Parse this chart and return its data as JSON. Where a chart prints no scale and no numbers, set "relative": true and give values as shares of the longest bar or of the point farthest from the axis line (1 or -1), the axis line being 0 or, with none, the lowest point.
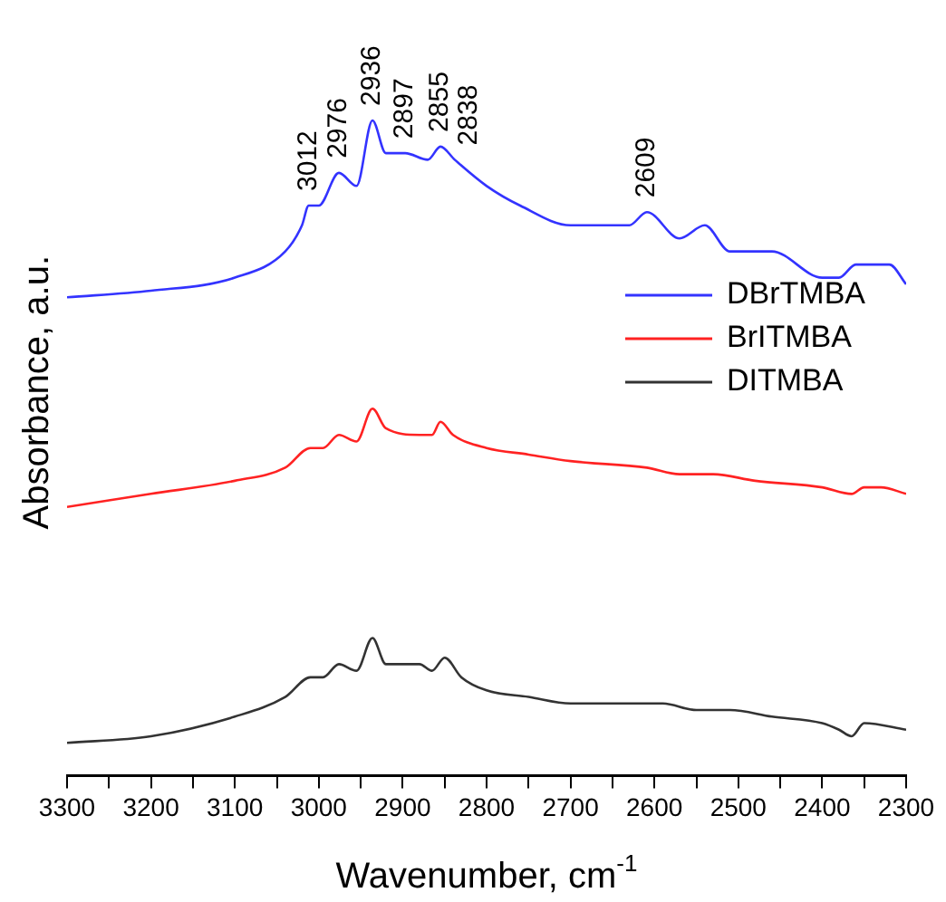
{
  "chart_data": {
    "type": "line",
    "relative": true,
    "xlabel": "Wavenumber, cm$^{-1}$",
    "ylabel": "Absorbance, a.u.",
    "xlim": [
      3300,
      2300
    ],
    "xticks": [
      3300,
      {
        "value": 3250,
        "label": null
      },
      3200,
      {
        "value": 3150,
        "label": null
      },
      3100,
      {
        "value": 3050,
        "label": null
      },
      3000,
      {
        "value": 2950,
        "label": null
      },
      2900,
      {
        "value": 2850,
        "label": null
      },
      2800,
      {
        "value": 2750,
        "label": null
      },
      2700,
      {
        "value": 2650,
        "label": null
      },
      2600,
      {
        "value": 2550,
        "label": null
      },
      2500,
      {
        "value": 2450,
        "label": null
      },
      2400,
      {
        "value": 2350,
        "label": null
      },
      2300
    ],
    "tick_labels": "x",
    "grid": false,
    "legend": "right",
    "marker": "none",
    "line_style": "solid",
    "series": [
      {
        "name": "DBrTMBA",
        "color": "#3333ff",
        "x": [
          3300,
          3200,
          3100,
          3040,
          3020,
          3012,
          3000,
          2976,
          2955,
          2936,
          2920,
          2897,
          2870,
          2855,
          2838,
          2800,
          2760,
          2700,
          2650,
          2630,
          2609,
          2570,
          2540,
          2510,
          2460,
          2400,
          2380,
          2360,
          2340,
          2320,
          2300
        ],
        "values": [
          0.73,
          0.74,
          0.76,
          0.8,
          0.84,
          0.87,
          0.87,
          0.92,
          0.9,
          1.0,
          0.95,
          0.95,
          0.94,
          0.96,
          0.94,
          0.9,
          0.87,
          0.84,
          0.84,
          0.84,
          0.86,
          0.82,
          0.84,
          0.8,
          0.8,
          0.76,
          0.76,
          0.78,
          0.78,
          0.78,
          0.75
        ]
      },
      {
        "name": "BrITMBA",
        "color": "#ff2222",
        "x": [
          3300,
          3200,
          3100,
          3040,
          3010,
          2995,
          2976,
          2955,
          2936,
          2920,
          2880,
          2865,
          2855,
          2840,
          2800,
          2750,
          2700,
          2609,
          2570,
          2530,
          2480,
          2400,
          2365,
          2350,
          2330,
          2300
        ],
        "values": [
          0.41,
          0.43,
          0.45,
          0.47,
          0.5,
          0.5,
          0.52,
          0.51,
          0.56,
          0.53,
          0.52,
          0.52,
          0.54,
          0.52,
          0.5,
          0.49,
          0.48,
          0.47,
          0.46,
          0.46,
          0.45,
          0.44,
          0.43,
          0.44,
          0.44,
          0.43
        ]
      },
      {
        "name": "DITMBA",
        "color": "#333333",
        "x": [
          3300,
          3200,
          3100,
          3040,
          3010,
          2995,
          2976,
          2955,
          2936,
          2920,
          2880,
          2865,
          2850,
          2830,
          2800,
          2750,
          2700,
          2620,
          2590,
          2550,
          2510,
          2460,
          2400,
          2380,
          2365,
          2350,
          2300
        ],
        "values": [
          0.05,
          0.06,
          0.09,
          0.12,
          0.15,
          0.15,
          0.17,
          0.16,
          0.21,
          0.17,
          0.17,
          0.16,
          0.18,
          0.15,
          0.13,
          0.12,
          0.11,
          0.11,
          0.11,
          0.1,
          0.1,
          0.09,
          0.08,
          0.07,
          0.06,
          0.08,
          0.07
        ]
      }
    ],
    "annotations": [
      {
        "text": "3012",
        "x": 3012,
        "y": 0.87
      },
      {
        "text": "2976",
        "x": 2976,
        "y": 0.92
      },
      {
        "text": "2936",
        "x": 2936,
        "y": 1.0
      },
      {
        "text": "2897",
        "x": 2897,
        "y": 0.95
      },
      {
        "text": "2855",
        "x": 2855,
        "y": 0.96
      },
      {
        "text": "2838",
        "x": 2838,
        "y": 0.94
      },
      {
        "text": "2609",
        "x": 2609,
        "y": 0.86
      }
    ]
  }
}
